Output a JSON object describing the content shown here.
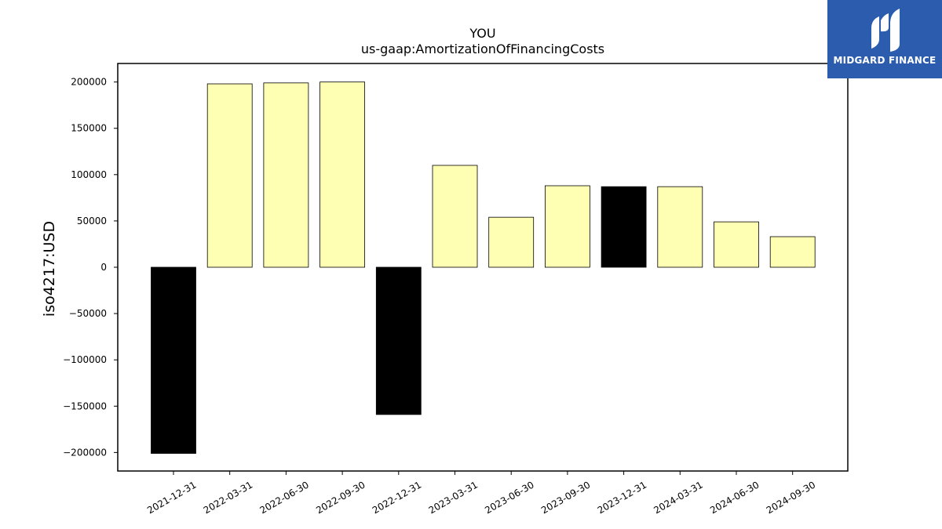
{
  "chart_data": {
    "type": "bar",
    "title": "YOU",
    "subtitle": "us-gaap:AmortizationOfFinancingCosts",
    "xlabel": "",
    "ylabel": "iso4217:USD",
    "categories": [
      "2021-12-31",
      "2022-03-31",
      "2022-06-30",
      "2022-09-30",
      "2022-12-31",
      "2023-03-31",
      "2023-06-30",
      "2023-09-30",
      "2023-12-31",
      "2024-03-31",
      "2024-06-30",
      "2024-09-30"
    ],
    "values": [
      -201000,
      198000,
      199000,
      200000,
      -159000,
      110000,
      54000,
      88000,
      87000,
      87000,
      49000,
      33000
    ],
    "bar_colors": [
      "#000000",
      "#ffffb3",
      "#ffffb3",
      "#ffffb3",
      "#000000",
      "#ffffb3",
      "#ffffb3",
      "#ffffb3",
      "#000000",
      "#ffffb3",
      "#ffffb3",
      "#ffffb3"
    ],
    "ylim": [
      -220000,
      220000
    ],
    "yticks": [
      -200000,
      -150000,
      -100000,
      -50000,
      0,
      50000,
      100000,
      150000,
      200000
    ],
    "ytick_labels": [
      "−200000",
      "−150000",
      "−100000",
      "−50000",
      "0",
      "50000",
      "100000",
      "150000",
      "200000"
    ],
    "grid": false,
    "legend": "none"
  },
  "logo": {
    "text": "MIDGARD FINANCE",
    "background": "#2b5cae",
    "icon": "midgard-logo-mark-icon"
  }
}
